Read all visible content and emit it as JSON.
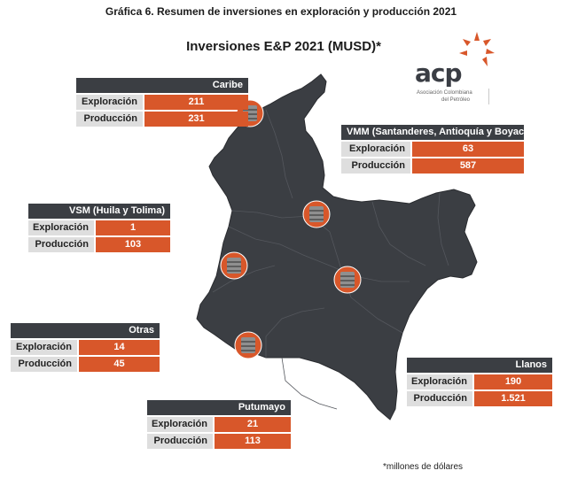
{
  "caption": "Gráfica 6. Resumen de inversiones en exploración y producción 2021",
  "map_title": "Inversiones E&P 2021 (MUSD)*",
  "logo": {
    "name": "acp",
    "subtitle_line1": "Asociación Colombiana",
    "subtitle_line2": "del Petróleo"
  },
  "labels": {
    "exploracion": "Exploración",
    "produccion": "Producción"
  },
  "regions": {
    "caribe": {
      "name": "Caribe",
      "exploracion": "211",
      "produccion": "231"
    },
    "vmm": {
      "name": "VMM (Santanderes, Antioquía y Boyacá)",
      "exploracion": "63",
      "produccion": "587"
    },
    "vsm": {
      "name": "VSM (Huila y Tolima)",
      "exploracion": "1",
      "produccion": "103"
    },
    "otras": {
      "name": "Otras",
      "exploracion": "14",
      "produccion": "45"
    },
    "llanos": {
      "name": "Llanos",
      "exploracion": "190",
      "produccion": "1.521"
    },
    "putumayo": {
      "name": "Putumayo",
      "exploracion": "21",
      "produccion": "113"
    }
  },
  "footnote": "*millones de dólares",
  "colors": {
    "map": "#3b3e43",
    "accent": "#d8572a",
    "header": "#3b3e43",
    "label_bg": "#dedede"
  },
  "icons": [
    "oil-barrel-icon"
  ]
}
